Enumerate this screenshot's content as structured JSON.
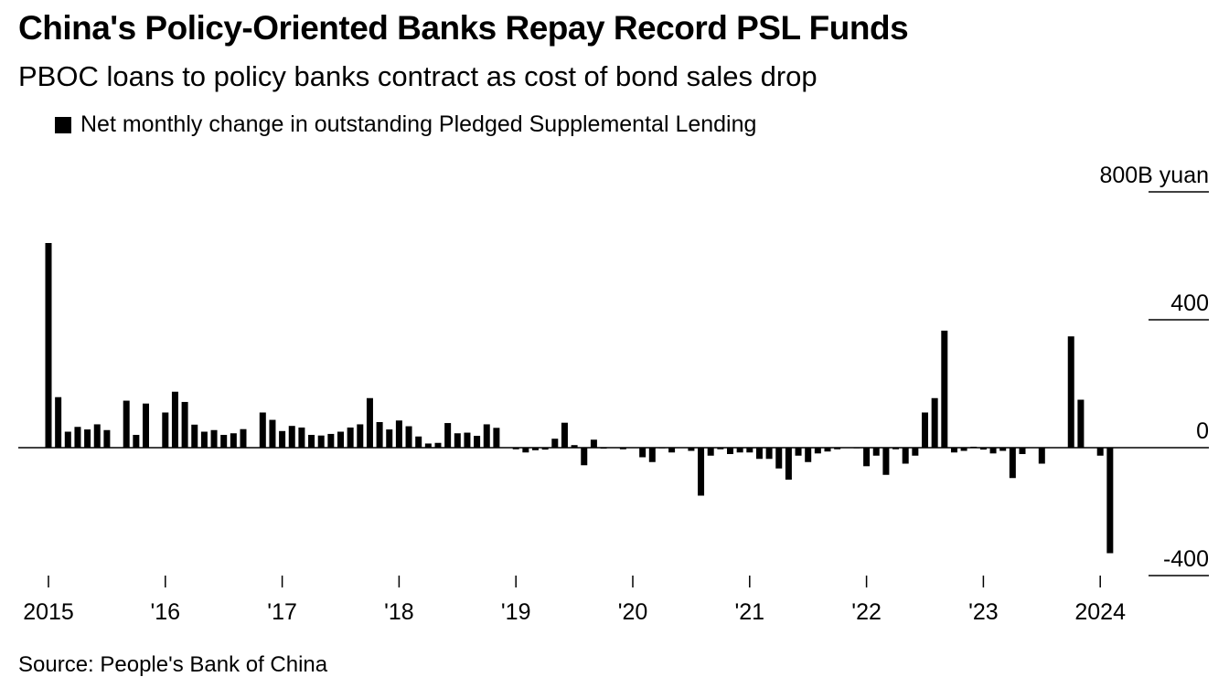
{
  "title": "China's Policy-Oriented Banks Repay Record PSL Funds",
  "subtitle": "PBOC loans to policy banks contract as cost of bond sales drop",
  "legend": {
    "label": "Net monthly change in outstanding Pledged Supplemental Lending",
    "color": "#000000"
  },
  "source": "Source: People's Bank of China",
  "chart_data": {
    "type": "bar",
    "unit": "B yuan",
    "ylim": [
      -400,
      800
    ],
    "y_ticks": [
      {
        "value": 800,
        "label": "800B yuan"
      },
      {
        "value": 400,
        "label": "400"
      },
      {
        "value": 0,
        "label": "0"
      },
      {
        "value": -400,
        "label": "-400"
      }
    ],
    "x_ticks": [
      {
        "date": "2015-01",
        "label": "2015"
      },
      {
        "date": "2016-01",
        "label": "'16"
      },
      {
        "date": "2017-01",
        "label": "'17"
      },
      {
        "date": "2018-01",
        "label": "'18"
      },
      {
        "date": "2019-01",
        "label": "'19"
      },
      {
        "date": "2020-01",
        "label": "'20"
      },
      {
        "date": "2021-01",
        "label": "'21"
      },
      {
        "date": "2022-01",
        "label": "'22"
      },
      {
        "date": "2023-01",
        "label": "'23"
      },
      {
        "date": "2024-01",
        "label": "2024"
      }
    ],
    "grid": false,
    "legend_position": "top-left",
    "bar_color": "#000000",
    "highlight_color": "#55aaee",
    "highlight_date": "2024-03",
    "start_date": "2015-01",
    "values": [
      640,
      158,
      50,
      65,
      57,
      73,
      55,
      0,
      147,
      40,
      138,
      0,
      110,
      175,
      143,
      72,
      50,
      55,
      40,
      45,
      58,
      0,
      110,
      87,
      52,
      68,
      63,
      40,
      38,
      43,
      50,
      63,
      73,
      155,
      80,
      57,
      85,
      67,
      35,
      13,
      15,
      77,
      45,
      47,
      37,
      73,
      62,
      0,
      -5,
      -15,
      -8,
      -6,
      28,
      78,
      8,
      -55,
      25,
      -3,
      0,
      -5,
      0,
      -30,
      -45,
      -2,
      -15,
      0,
      -10,
      -150,
      -25,
      -5,
      -20,
      -15,
      -15,
      -35,
      -35,
      -65,
      -100,
      -25,
      -45,
      -18,
      -12,
      -5,
      0,
      -2,
      -58,
      -25,
      -85,
      -5,
      -50,
      -25,
      110,
      155,
      366,
      -15,
      -10,
      3,
      -6,
      -18,
      -10,
      -95,
      -20,
      0,
      -50,
      0,
      0,
      348,
      150,
      0,
      -25,
      -330
    ]
  }
}
